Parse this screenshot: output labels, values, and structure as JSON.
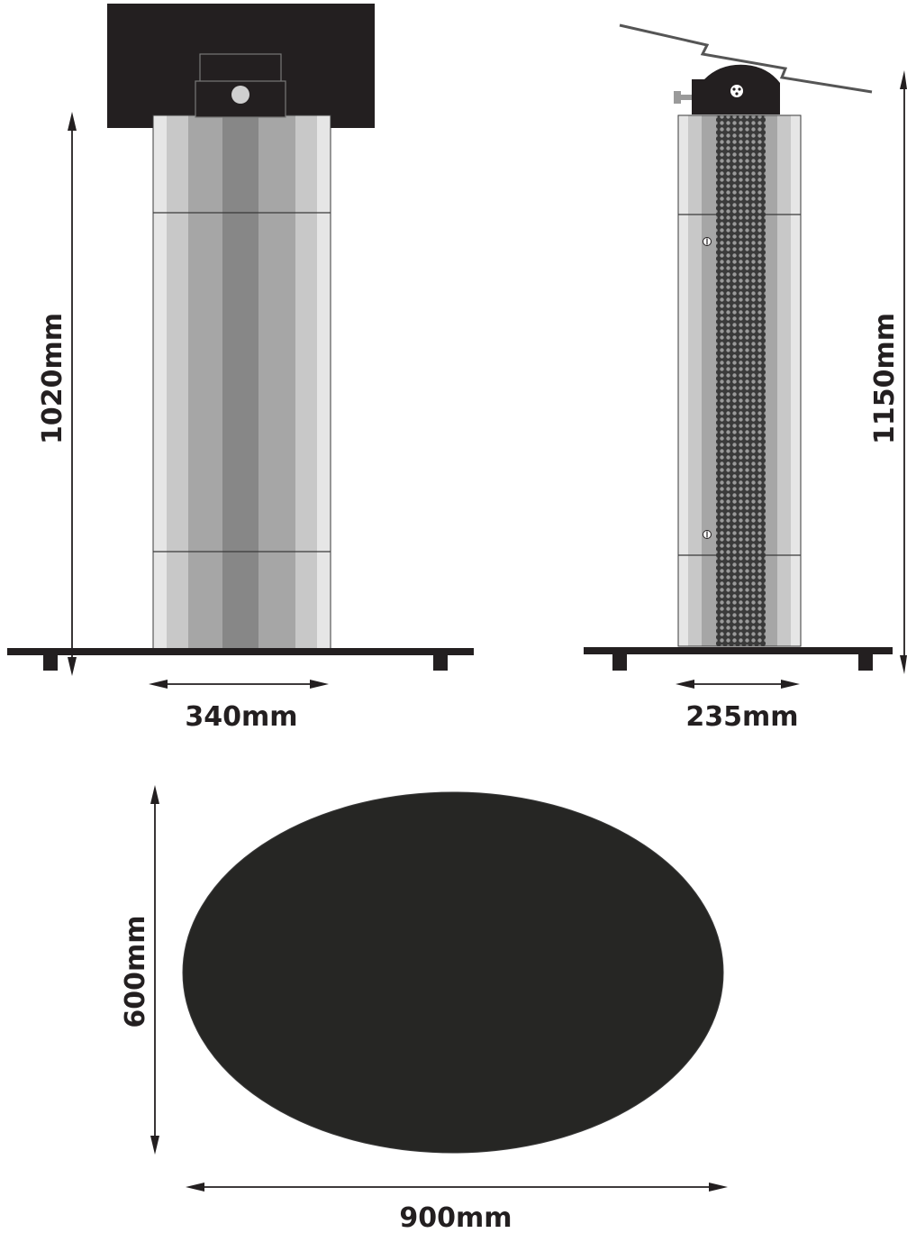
{
  "dimensions": {
    "front_height": "1020mm",
    "front_width": "340mm",
    "side_height": "1150mm",
    "side_width": "235mm",
    "base_depth": "600mm",
    "base_width": "900mm"
  },
  "colors": {
    "dark": "#231f20",
    "outline": "#3a3a3a",
    "stripe_light": "#e6e6e6",
    "stripe_mid_light": "#c8c8c8",
    "stripe_mid": "#a6a6a6",
    "stripe_dark": "#878787",
    "knob": "#cfcfcf"
  }
}
